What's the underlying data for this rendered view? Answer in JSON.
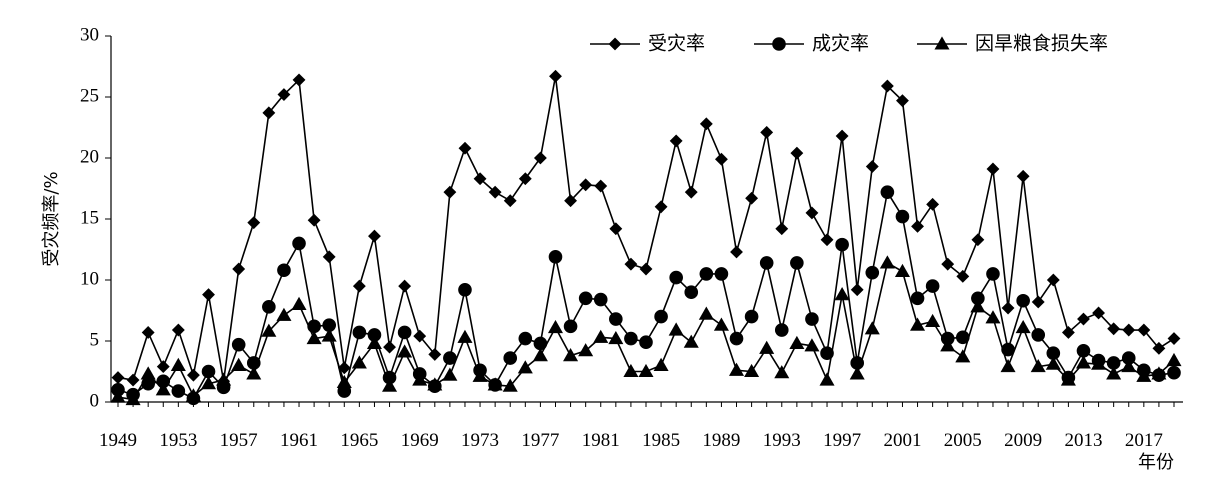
{
  "chart_data": {
    "type": "line",
    "title": "",
    "xlabel": "年份",
    "ylabel": "受灾频率/%",
    "ylim": [
      0,
      30
    ],
    "yticks": [
      0,
      5,
      10,
      15,
      20,
      25,
      30
    ],
    "xlim": [
      1949,
      2019
    ],
    "xticks": [
      1949,
      1953,
      1957,
      1961,
      1965,
      1969,
      1973,
      1977,
      1981,
      1985,
      1989,
      1993,
      1997,
      2001,
      2005,
      2009,
      2013,
      2017
    ],
    "legend_position": "top-right",
    "grid": false,
    "x": [
      1949,
      1950,
      1951,
      1952,
      1953,
      1954,
      1955,
      1956,
      1957,
      1958,
      1959,
      1960,
      1961,
      1962,
      1963,
      1964,
      1965,
      1966,
      1967,
      1968,
      1969,
      1970,
      1971,
      1972,
      1973,
      1974,
      1975,
      1976,
      1977,
      1978,
      1979,
      1980,
      1981,
      1982,
      1983,
      1984,
      1985,
      1986,
      1987,
      1988,
      1989,
      1990,
      1991,
      1992,
      1993,
      1994,
      1995,
      1996,
      1997,
      1998,
      1999,
      2000,
      2001,
      2002,
      2003,
      2004,
      2005,
      2006,
      2007,
      2008,
      2009,
      2010,
      2011,
      2012,
      2013,
      2014,
      2015,
      2016,
      2017,
      2018,
      2019
    ],
    "series": [
      {
        "name": "受灾率",
        "marker": "diamond",
        "values": [
          2.0,
          1.8,
          5.7,
          2.9,
          5.9,
          2.2,
          8.8,
          1.7,
          10.9,
          14.7,
          23.7,
          25.2,
          26.4,
          14.9,
          11.9,
          2.8,
          9.5,
          13.6,
          4.5,
          9.5,
          5.4,
          3.9,
          17.2,
          20.8,
          18.3,
          17.2,
          16.5,
          18.3,
          20.0,
          26.7,
          16.5,
          17.8,
          17.7,
          14.2,
          11.3,
          10.9,
          16.0,
          21.4,
          17.2,
          22.8,
          19.9,
          12.3,
          16.7,
          22.1,
          14.2,
          20.4,
          15.5,
          13.3,
          21.8,
          9.2,
          19.3,
          25.9,
          24.7,
          14.4,
          16.2,
          11.3,
          10.3,
          13.3,
          19.1,
          7.7,
          18.5,
          8.2,
          10.0,
          5.7,
          6.8,
          7.3,
          6.0,
          5.9,
          5.9,
          4.4,
          5.2
        ]
      },
      {
        "name": "成灾率",
        "marker": "circle",
        "values": [
          1.0,
          0.6,
          1.5,
          1.7,
          0.9,
          0.3,
          2.5,
          1.2,
          4.7,
          3.2,
          7.8,
          10.8,
          13.0,
          6.2,
          6.3,
          0.9,
          5.7,
          5.5,
          2.0,
          5.7,
          2.3,
          1.3,
          3.6,
          9.2,
          2.6,
          1.4,
          3.6,
          5.2,
          4.8,
          11.9,
          6.2,
          8.5,
          8.4,
          6.8,
          5.2,
          4.9,
          7.0,
          10.2,
          9.0,
          10.5,
          10.5,
          5.2,
          7.0,
          11.4,
          5.9,
          11.4,
          6.8,
          4.0,
          12.9,
          3.2,
          10.6,
          17.2,
          15.2,
          8.5,
          9.5,
          5.2,
          5.3,
          8.5,
          10.5,
          4.3,
          8.3,
          5.5,
          4.0,
          2.0,
          4.2,
          3.4,
          3.2,
          3.6,
          2.6,
          2.2,
          2.4
        ]
      },
      {
        "name": "因旱粮食损失率",
        "marker": "triangle",
        "values": [
          0.4,
          0.2,
          2.3,
          1.0,
          3.0,
          0.5,
          1.5,
          1.8,
          3.0,
          2.3,
          5.8,
          7.1,
          8.0,
          5.2,
          5.4,
          1.6,
          3.2,
          4.8,
          1.3,
          4.1,
          1.8,
          1.4,
          2.2,
          5.3,
          2.1,
          1.4,
          1.3,
          2.8,
          3.8,
          6.1,
          3.8,
          4.2,
          5.3,
          5.2,
          2.5,
          2.5,
          3.0,
          5.9,
          4.9,
          7.2,
          6.3,
          2.6,
          2.5,
          4.4,
          2.4,
          4.8,
          4.6,
          1.8,
          8.8,
          2.3,
          6.0,
          11.4,
          10.7,
          6.3,
          6.6,
          4.6,
          3.7,
          7.8,
          6.9,
          2.9,
          6.1,
          2.9,
          3.1,
          1.8,
          3.2,
          3.1,
          2.3,
          2.9,
          2.1,
          2.3,
          3.4
        ]
      }
    ]
  }
}
